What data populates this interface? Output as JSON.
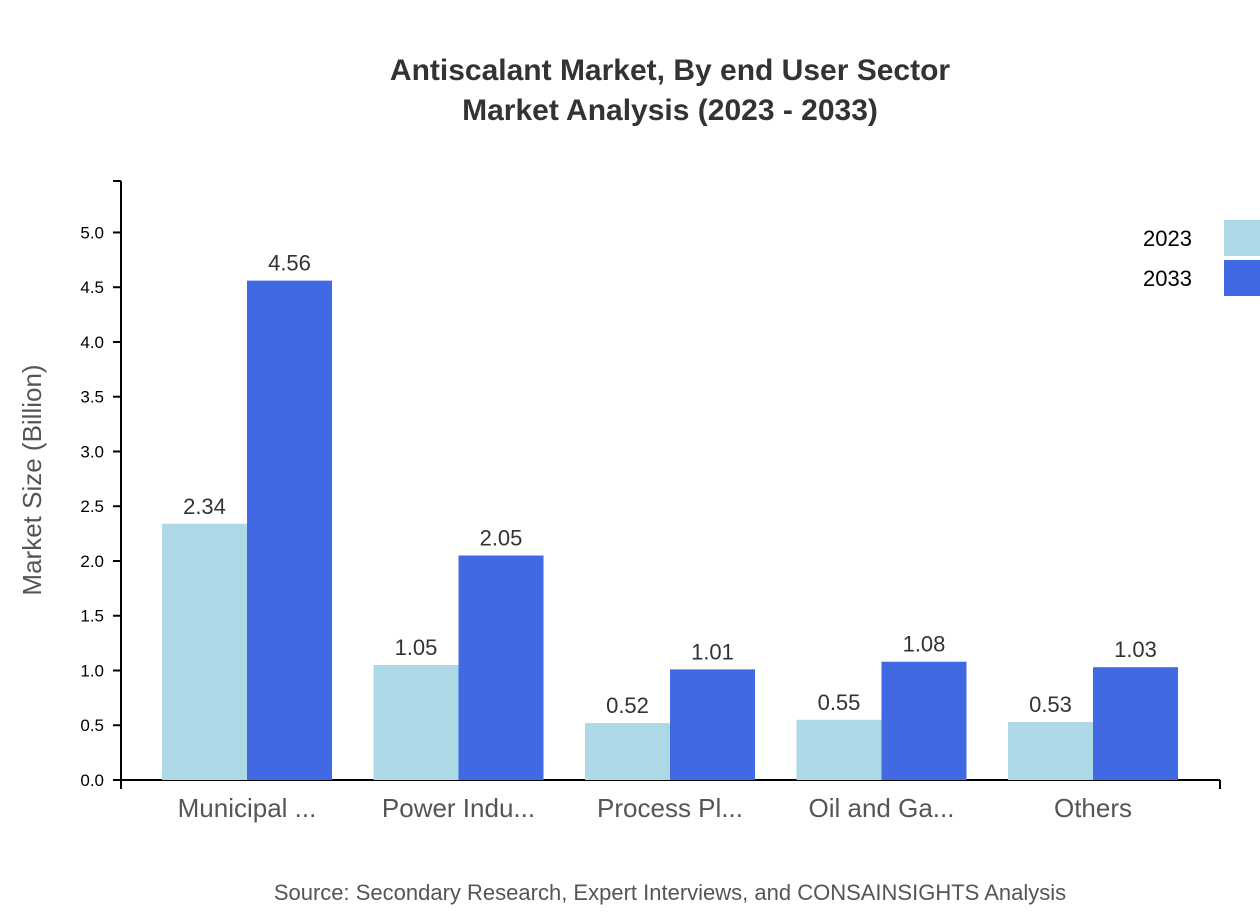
{
  "chart_data": {
    "type": "bar",
    "title": "Antiscalant Market, By end User Sector",
    "subtitle": "Market Analysis (2023 - 2033)",
    "ylabel": "Market Size (Billion)",
    "xlabel": "",
    "categories": [
      "Municipal ...",
      "Power Indu...",
      "Process Pl...",
      "Oil and Ga...",
      "Others"
    ],
    "series": [
      {
        "name": "2023",
        "color": "#ADD8E6",
        "values": [
          2.34,
          1.05,
          0.52,
          0.55,
          0.53
        ]
      },
      {
        "name": "2033",
        "color": "#4169E1",
        "values": [
          4.56,
          2.05,
          1.01,
          1.08,
          1.03
        ]
      }
    ],
    "ylim": [
      0,
      5.47
    ],
    "yticks": [
      "0.0",
      "0.5",
      "1.0",
      "1.5",
      "2.0",
      "2.5",
      "3.0",
      "3.5",
      "4.0",
      "4.5",
      "5.0"
    ],
    "grid": false,
    "legend_position": "top-right",
    "source": "Source: Secondary Research, Expert Interviews, and CONSAINSIGHTS Analysis"
  }
}
